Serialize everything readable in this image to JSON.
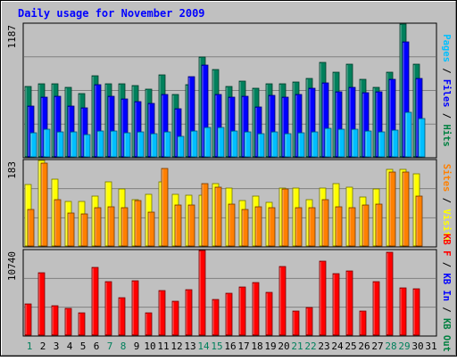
{
  "chart_data": {
    "type": "bar",
    "title": "Daily usage for November 2009",
    "categories": [
      "1",
      "2",
      "3",
      "4",
      "5",
      "6",
      "7",
      "8",
      "9",
      "10",
      "11",
      "12",
      "13",
      "14",
      "15",
      "16",
      "17",
      "18",
      "19",
      "20",
      "21",
      "22",
      "23",
      "24",
      "25",
      "26",
      "27",
      "28",
      "29",
      "30",
      "31"
    ],
    "weekend_days": [
      "1",
      "7",
      "8",
      "14",
      "15",
      "21",
      "22",
      "28",
      "29"
    ],
    "grid": true,
    "panels": [
      {
        "id": "hits-files-pages",
        "ymax_label": "1187",
        "ymax": 1187,
        "axis_label_parts": [
          {
            "text": "Pages",
            "color": "#00c0ff"
          },
          {
            "text": " / ",
            "color": "#000000"
          },
          {
            "text": "Files",
            "color": "#0000ff"
          },
          {
            "text": " / ",
            "color": "#000000"
          },
          {
            "text": "Hits",
            "color": "#008040"
          }
        ],
        "series": [
          {
            "name": "Hits",
            "color": "#00805c",
            "values": [
              630,
              655,
              650,
              620,
              565,
              722,
              650,
              655,
              640,
              607,
              735,
              555,
              648,
              890,
              783,
              630,
              680,
              610,
              655,
              655,
              670,
              705,
              845,
              760,
              825,
              695,
              620,
              755,
              1187,
              825,
              0
            ]
          },
          {
            "name": "Files",
            "color": "#0000ff",
            "values": [
              455,
              530,
              540,
              455,
              440,
              645,
              540,
              520,
              495,
              480,
              555,
              432,
              720,
              822,
              560,
              535,
              540,
              450,
              550,
              535,
              558,
              615,
              665,
              580,
              625,
              575,
              580,
              695,
              1025,
              700,
              0
            ]
          },
          {
            "name": "Pages",
            "color": "#00bfff",
            "values": [
              215,
              245,
              225,
              220,
              200,
              235,
              230,
              215,
              220,
              210,
              225,
              185,
              235,
              265,
              260,
              230,
              225,
              210,
              225,
              210,
              215,
              220,
              255,
              250,
              245,
              230,
              225,
              240,
              395,
              340,
              0
            ]
          }
        ]
      },
      {
        "id": "visits-sites",
        "ymax_label": "183",
        "ymax": 183,
        "axis_label_parts": [
          {
            "text": "Sites",
            "color": "#ff8000"
          },
          {
            "text": " / ",
            "color": "#000000"
          },
          {
            "text": "Visits",
            "color": "#ffff00"
          }
        ],
        "series": [
          {
            "name": "Visits",
            "color": "#ffff00",
            "values": [
              131,
              183,
              143,
              95,
              95,
              106,
              138,
              122,
              100,
              110,
              137,
              110,
              109,
              108,
              134,
              123,
              98,
              107,
              93,
              124,
              123,
              100,
              123,
              134,
              126,
              104,
              122,
              163,
              163,
              154,
              0
            ]
          },
          {
            "name": "Sites",
            "color": "#ff8000",
            "values": [
              78,
              177,
              100,
              70,
              68,
              82,
              83,
              82,
              97,
              73,
              165,
              88,
              88,
              134,
              126,
              89,
              78,
              84,
              82,
              122,
              82,
              82,
              100,
              84,
              82,
              88,
              89,
              159,
              159,
              107,
              0
            ]
          }
        ]
      },
      {
        "id": "kbytes",
        "ymax_label": "10740",
        "ymax": 10740,
        "axis_label_parts": [
          {
            "text": "KB F",
            "color": "#ff0000"
          },
          {
            "text": " / ",
            "color": "#000000"
          },
          {
            "text": "KB In",
            "color": "#0000ff"
          },
          {
            "text": " / ",
            "color": "#000000"
          },
          {
            "text": "KB Out",
            "color": "#008040"
          }
        ],
        "series": [
          {
            "name": "KB F",
            "color": "#ff0000",
            "values": [
              3950,
              7870,
              3700,
              3340,
              2860,
              8630,
              6830,
              4780,
              6900,
              2870,
              5690,
              4240,
              5730,
              10740,
              4560,
              5280,
              6100,
              6620,
              5470,
              8710,
              3040,
              3510,
              9390,
              7820,
              8180,
              3060,
              6800,
              10550,
              5980,
              5880,
              0
            ]
          }
        ]
      }
    ]
  }
}
